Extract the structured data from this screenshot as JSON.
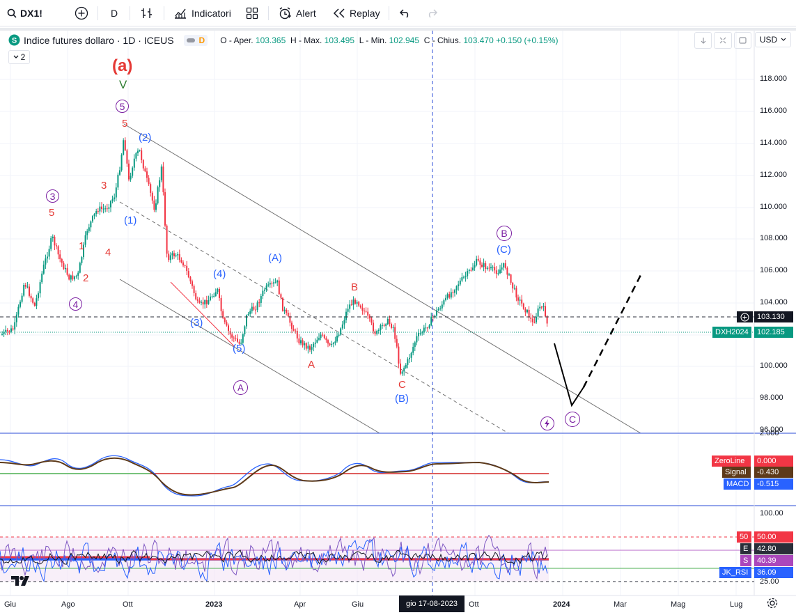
{
  "toolbar": {
    "symbol": "DX1!",
    "interval": "D",
    "indicators_label": "Indicatori",
    "alert_label": "Alert",
    "replay_label": "Replay"
  },
  "legend": {
    "title": "Indice futures dollaro · 1D · ICEUS",
    "badge": "D",
    "o_label": "O - Aper.",
    "o_value": "103.365",
    "h_label": "H - Max.",
    "h_value": "103.495",
    "l_label": "L - Min.",
    "l_value": "102.945",
    "c_label": "C - Chius.",
    "c_value": "103.470",
    "change": "+0.150 (+0.15%)",
    "collapse_count": "2"
  },
  "currency": "USD",
  "price_axis": [
    "118.000",
    "116.000",
    "114.000",
    "112.000",
    "110.000",
    "108.000",
    "106.000",
    "104.000",
    "100.000",
    "98.000",
    "96.000"
  ],
  "price_tags": {
    "crosshair": "103.130",
    "contract_name": "DXH2024",
    "contract_price": "102.185"
  },
  "macd": {
    "axis_top": "2.000",
    "zeroline_label": "ZeroLine",
    "zeroline_value": "0.000",
    "signal_label": "Signal",
    "signal_value": "-0.430",
    "macd_label": "MACD",
    "macd_value": "-0.515"
  },
  "rsi": {
    "axis_top": "100.00",
    "axis_bottom": "25.00",
    "level50_label": "50",
    "level50_value": "50.00",
    "e_label": "E",
    "e_value": "42.80",
    "s_label": "S",
    "s_value": "40.39",
    "jk_label": "JK_RSI",
    "jk_value": "36.09"
  },
  "time_axis": [
    "Giu",
    "Ago",
    "Ott",
    "2023",
    "Apr",
    "Giu",
    "Ott",
    "2024",
    "Mar",
    "Mag",
    "Lug"
  ],
  "crosshair_date": "gio 17-08-2023",
  "wave_labels": {
    "a_red": "(a)",
    "v_green": "V",
    "circle5": "5",
    "red5_top": "5",
    "circle3": "3",
    "red5_left": "5",
    "red3": "3",
    "red1": "1",
    "red2": "2",
    "red4": "4",
    "circle4": "4",
    "blue2": "(2)",
    "blue1": "(1)",
    "blue4": "(4)",
    "blue3": "(3)",
    "blue5": "(5)",
    "circleA": "A",
    "blueA_paren": "(A)",
    "redB": "B",
    "redA": "A",
    "redC": "C",
    "blueB_paren": "(B)",
    "circleB": "B",
    "blueC_paren": "(C)",
    "circleC": "C"
  },
  "colors": {
    "bull": "#089981",
    "bear": "#f23645",
    "wave_red": "#e53935",
    "wave_blue": "#2962ff",
    "wave_purple": "#7b1fa2",
    "macd_line": "#2962ff",
    "signal_line": "#5d3a1a",
    "zeroline": "#4caf50",
    "rsi_50": "#f23645"
  }
}
